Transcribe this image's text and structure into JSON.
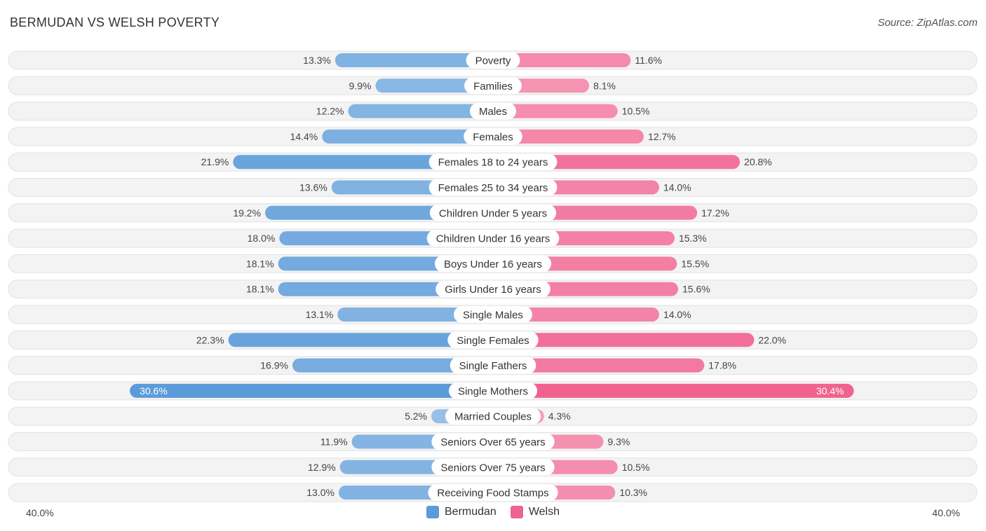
{
  "title": "BERMUDAN VS WELSH POVERTY",
  "source": "Source: ZipAtlas.com",
  "colors": {
    "left": "#5b9bd9",
    "right": "#f0628f",
    "left_legend": "#5b9bd9",
    "right_legend": "#f0628f"
  },
  "legend": {
    "left": "Bermudan",
    "right": "Welsh"
  },
  "axis": {
    "left_label": "40.0%",
    "right_label": "40.0%"
  },
  "chart_data": {
    "type": "bar",
    "orientation": "horizontal-diverging",
    "title": "BERMUDAN VS WELSH POVERTY",
    "xlim": [
      0,
      40
    ],
    "categories": [
      "Poverty",
      "Families",
      "Males",
      "Females",
      "Females 18 to 24 years",
      "Females 25 to 34 years",
      "Children Under 5 years",
      "Children Under 16 years",
      "Boys Under 16 years",
      "Girls Under 16 years",
      "Single Males",
      "Single Females",
      "Single Fathers",
      "Single Mothers",
      "Married Couples",
      "Seniors Over 65 years",
      "Seniors Over 75 years",
      "Receiving Food Stamps"
    ],
    "series": [
      {
        "name": "Bermudan",
        "values": [
          13.3,
          9.9,
          12.2,
          14.4,
          21.9,
          13.6,
          19.2,
          18.0,
          18.1,
          18.1,
          13.1,
          22.3,
          16.9,
          30.6,
          5.2,
          11.9,
          12.9,
          13.0
        ],
        "labels": [
          "13.3%",
          "9.9%",
          "12.2%",
          "14.4%",
          "21.9%",
          "13.6%",
          "19.2%",
          "18.0%",
          "18.1%",
          "18.1%",
          "13.1%",
          "22.3%",
          "16.9%",
          "30.6%",
          "5.2%",
          "11.9%",
          "12.9%",
          "13.0%"
        ]
      },
      {
        "name": "Welsh",
        "values": [
          11.6,
          8.1,
          10.5,
          12.7,
          20.8,
          14.0,
          17.2,
          15.3,
          15.5,
          15.6,
          14.0,
          22.0,
          17.8,
          30.4,
          4.3,
          9.3,
          10.5,
          10.3
        ],
        "labels": [
          "11.6%",
          "8.1%",
          "10.5%",
          "12.7%",
          "20.8%",
          "14.0%",
          "17.2%",
          "15.3%",
          "15.5%",
          "15.6%",
          "14.0%",
          "22.0%",
          "17.8%",
          "30.4%",
          "4.3%",
          "9.3%",
          "10.5%",
          "10.3%"
        ]
      }
    ]
  }
}
